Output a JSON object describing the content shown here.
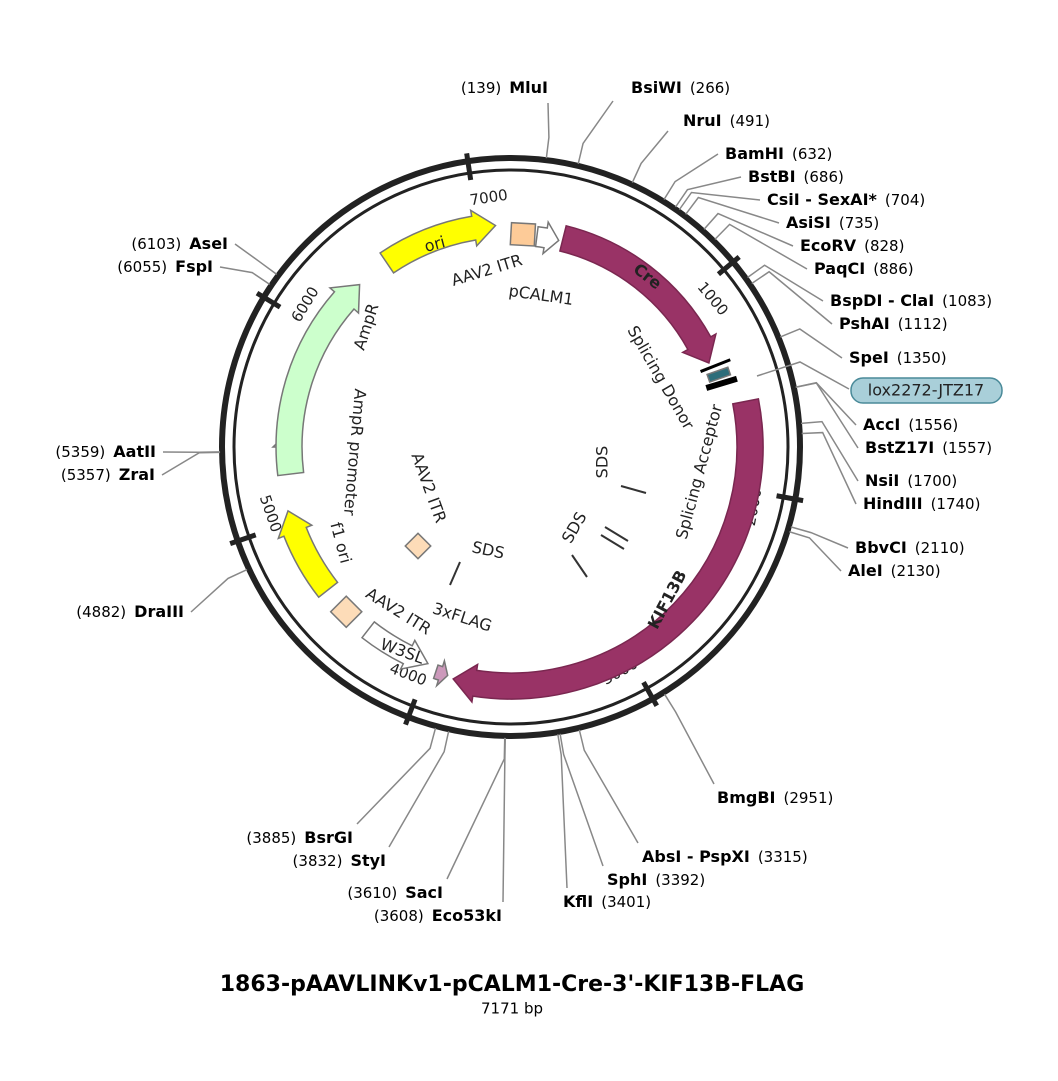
{
  "title": "1863-pAAVLINKv1-pCALM1-Cre-3'-KIF13B-FLAG",
  "length": {
    "value": 7171,
    "label": "7171 bp"
  },
  "ticks": [
    1000,
    2000,
    3000,
    4000,
    5000,
    6000,
    7000
  ],
  "enzymes": [
    {
      "name": "MluI",
      "label": "(139)",
      "position": 139
    },
    {
      "name": "BsiWI",
      "label": "(266)",
      "position": 266
    },
    {
      "name": "NruI",
      "label": "(491)",
      "position": 491
    },
    {
      "name": "BamHI",
      "label": "(632)",
      "position": 632
    },
    {
      "name": "BstBI",
      "label": "(686)",
      "position": 686
    },
    {
      "name": "CsiI - SexAI*",
      "label": "(704)",
      "position": 704
    },
    {
      "name": "AsiSI",
      "label": "(735)",
      "position": 735
    },
    {
      "name": "EcoRV",
      "label": "(828)",
      "position": 828
    },
    {
      "name": "PaqCI",
      "label": "(886)",
      "position": 886
    },
    {
      "name": "BspDI - ClaI",
      "label": "(1083)",
      "position": 1083
    },
    {
      "name": "PshAI",
      "label": "(1112)",
      "position": 1112
    },
    {
      "name": "SpeI",
      "label": "(1350)",
      "position": 1350
    },
    {
      "name": "AccI",
      "label": "(1556)",
      "position": 1556
    },
    {
      "name": "BstZ17I",
      "label": "(1557)",
      "position": 1557
    },
    {
      "name": "NsiI",
      "label": "(1700)",
      "position": 1700
    },
    {
      "name": "HindIII",
      "label": "(1740)",
      "position": 1740
    },
    {
      "name": "BbvCI",
      "label": "(2110)",
      "position": 2110
    },
    {
      "name": "AleI",
      "label": "(2130)",
      "position": 2130
    },
    {
      "name": "BmgBI",
      "label": "(2951)",
      "position": 2951
    },
    {
      "name": "AbsI - PspXI",
      "label": "(3315)",
      "position": 3315
    },
    {
      "name": "SphI",
      "label": "(3392)",
      "position": 3392
    },
    {
      "name": "KflI",
      "label": "(3401)",
      "position": 3401
    },
    {
      "name": "Eco53kI",
      "label": "(3608)",
      "position": 3608
    },
    {
      "name": "SacI",
      "label": "(3610)",
      "position": 3610
    },
    {
      "name": "StyI",
      "label": "(3832)",
      "position": 3832
    },
    {
      "name": "BsrGI",
      "label": "(3885)",
      "position": 3885
    },
    {
      "name": "DraIII",
      "label": "(4882)",
      "position": 4882
    },
    {
      "name": "ZraI",
      "label": "(5357)",
      "position": 5357
    },
    {
      "name": "AatII",
      "label": "(5359)",
      "position": 5359
    },
    {
      "name": "FspI",
      "label": "(6055)",
      "position": 6055
    },
    {
      "name": "AseI",
      "label": "(6103)",
      "position": 6103
    }
  ],
  "features": [
    "ori",
    "AAV2 ITR",
    "pCALM1",
    "Cre",
    "Splicing Donor",
    "lox2272-JTZ17",
    "Splicing Acceptor",
    "KIF13B",
    "3xFLAG",
    "W3SL",
    "AAV2 ITR",
    "f1 ori",
    "AmpR promoter",
    "AmpR",
    "SDS",
    "SDS",
    "SDS",
    "AAV2 ITR"
  ]
}
